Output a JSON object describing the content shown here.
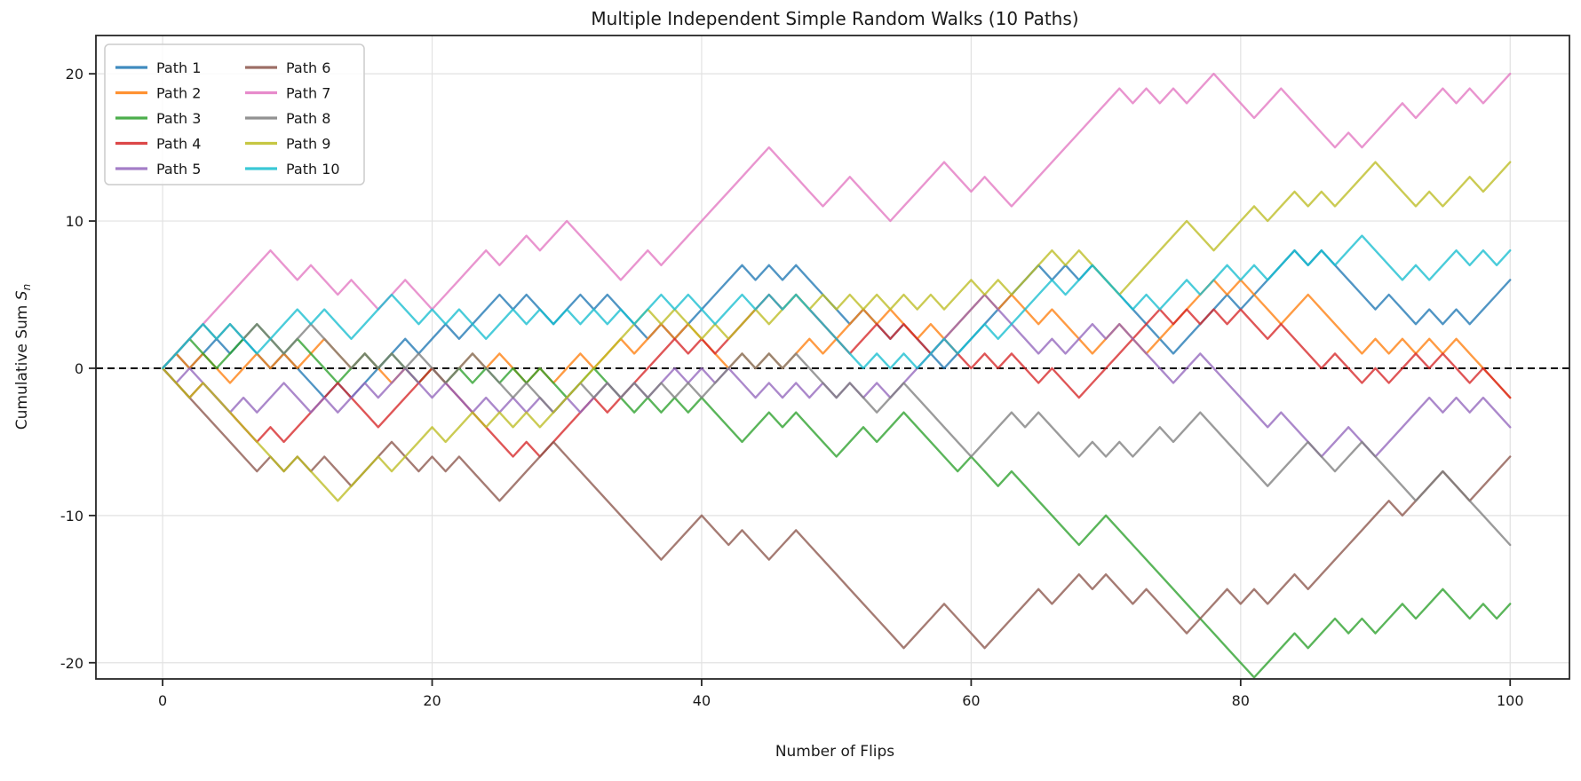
{
  "title": "Multiple Independent Simple Random Walks (10 Paths)",
  "chart_data": {
    "type": "line",
    "title": "Multiple Independent Simple Random Walks (10 Paths)",
    "xlabel": "Number of Flips",
    "ylabel_prefix": "Cumulative Sum ",
    "ylabel_var": "S",
    "ylabel_sub": "n",
    "xlim": [
      -4.95,
      104.4
    ],
    "ylim": [
      -21.1,
      22.6
    ],
    "xticks": [
      0,
      20,
      40,
      60,
      80,
      100
    ],
    "yticks": [
      -20,
      -10,
      0,
      10,
      20
    ],
    "grid": true,
    "grid_color": "#e2e2e2",
    "spine_color": "#262626",
    "legend_position": "upper left",
    "reference_line": {
      "y": 0,
      "style": "dashed",
      "color": "#000000"
    },
    "line_opacity": 0.78,
    "x_start": 0,
    "x_step": 1,
    "n_points": 101,
    "series": [
      {
        "name": "Path 1",
        "color": "#1f77b4",
        "values": [
          0,
          1,
          0,
          1,
          2,
          1,
          2,
          1,
          0,
          1,
          0,
          -1,
          -2,
          -1,
          -2,
          -1,
          0,
          1,
          2,
          1,
          2,
          3,
          2,
          3,
          4,
          5,
          4,
          5,
          4,
          3,
          4,
          5,
          4,
          5,
          4,
          3,
          2,
          3,
          2,
          3,
          4,
          5,
          6,
          7,
          6,
          7,
          6,
          7,
          6,
          5,
          4,
          3,
          4,
          3,
          2,
          3,
          2,
          1,
          0,
          1,
          2,
          3,
          4,
          5,
          6,
          7,
          6,
          7,
          6,
          7,
          6,
          5,
          4,
          3,
          2,
          1,
          2,
          3,
          4,
          5,
          4,
          5,
          6,
          7,
          8,
          7,
          8,
          7,
          6,
          5,
          4,
          5,
          4,
          3,
          4,
          3,
          4,
          3,
          4,
          5,
          6
        ]
      },
      {
        "name": "Path 2",
        "color": "#ff7f0e",
        "values": [
          0,
          1,
          0,
          1,
          0,
          -1,
          0,
          1,
          0,
          1,
          0,
          1,
          2,
          1,
          0,
          1,
          0,
          -1,
          0,
          -1,
          0,
          -1,
          0,
          1,
          0,
          1,
          0,
          -1,
          0,
          -1,
          0,
          1,
          0,
          1,
          2,
          1,
          2,
          3,
          2,
          3,
          2,
          1,
          0,
          1,
          0,
          1,
          0,
          1,
          2,
          1,
          2,
          3,
          4,
          3,
          4,
          3,
          2,
          3,
          2,
          3,
          4,
          5,
          4,
          5,
          4,
          3,
          4,
          3,
          2,
          1,
          2,
          3,
          2,
          1,
          2,
          3,
          4,
          5,
          6,
          5,
          6,
          5,
          4,
          3,
          4,
          5,
          4,
          3,
          2,
          1,
          2,
          1,
          2,
          1,
          2,
          1,
          2,
          1,
          0,
          -1,
          -2
        ]
      },
      {
        "name": "Path 3",
        "color": "#2ca02c",
        "values": [
          0,
          1,
          2,
          1,
          0,
          1,
          2,
          3,
          2,
          1,
          2,
          1,
          0,
          -1,
          0,
          1,
          0,
          1,
          0,
          -1,
          0,
          -1,
          0,
          -1,
          0,
          -1,
          0,
          -1,
          0,
          -1,
          -2,
          -1,
          0,
          -1,
          -2,
          -3,
          -2,
          -3,
          -2,
          -3,
          -2,
          -3,
          -4,
          -5,
          -4,
          -3,
          -4,
          -3,
          -4,
          -5,
          -6,
          -5,
          -4,
          -5,
          -4,
          -3,
          -4,
          -5,
          -6,
          -7,
          -6,
          -7,
          -8,
          -7,
          -8,
          -9,
          -10,
          -11,
          -12,
          -11,
          -10,
          -11,
          -12,
          -13,
          -14,
          -15,
          -16,
          -17,
          -18,
          -19,
          -20,
          -21,
          -20,
          -19,
          -18,
          -19,
          -18,
          -17,
          -18,
          -17,
          -18,
          -17,
          -16,
          -17,
          -16,
          -15,
          -16,
          -17,
          -16,
          -17,
          -16
        ]
      },
      {
        "name": "Path 4",
        "color": "#d62728",
        "values": [
          0,
          -1,
          -2,
          -1,
          -2,
          -3,
          -4,
          -5,
          -4,
          -5,
          -4,
          -3,
          -2,
          -1,
          -2,
          -3,
          -4,
          -3,
          -2,
          -1,
          0,
          -1,
          -2,
          -3,
          -4,
          -5,
          -6,
          -5,
          -6,
          -5,
          -4,
          -3,
          -2,
          -3,
          -2,
          -1,
          0,
          1,
          2,
          1,
          2,
          1,
          2,
          3,
          4,
          5,
          4,
          5,
          4,
          3,
          2,
          1,
          2,
          3,
          2,
          3,
          2,
          1,
          2,
          1,
          0,
          1,
          0,
          1,
          0,
          -1,
          0,
          -1,
          -2,
          -1,
          0,
          1,
          2,
          3,
          4,
          3,
          4,
          3,
          4,
          3,
          4,
          3,
          2,
          3,
          2,
          1,
          0,
          1,
          0,
          -1,
          0,
          -1,
          0,
          1,
          0,
          1,
          0,
          -1,
          0,
          -1,
          -2
        ]
      },
      {
        "name": "Path 5",
        "color": "#9467bd",
        "values": [
          0,
          -1,
          0,
          -1,
          -2,
          -3,
          -2,
          -3,
          -2,
          -1,
          -2,
          -3,
          -2,
          -3,
          -2,
          -1,
          -2,
          -1,
          0,
          -1,
          -2,
          -1,
          -2,
          -3,
          -2,
          -3,
          -2,
          -3,
          -2,
          -3,
          -2,
          -3,
          -2,
          -1,
          -2,
          -1,
          -2,
          -1,
          0,
          -1,
          0,
          -1,
          0,
          -1,
          -2,
          -1,
          -2,
          -1,
          -2,
          -1,
          -2,
          -1,
          -2,
          -1,
          -2,
          -1,
          0,
          1,
          2,
          3,
          4,
          5,
          4,
          3,
          2,
          1,
          2,
          1,
          2,
          3,
          2,
          3,
          2,
          1,
          0,
          -1,
          0,
          1,
          0,
          -1,
          -2,
          -3,
          -4,
          -3,
          -4,
          -5,
          -6,
          -5,
          -4,
          -5,
          -6,
          -5,
          -4,
          -3,
          -2,
          -3,
          -2,
          -3,
          -2,
          -3,
          -4
        ]
      },
      {
        "name": "Path 6",
        "color": "#8c564b",
        "values": [
          0,
          -1,
          -2,
          -3,
          -4,
          -5,
          -6,
          -7,
          -6,
          -7,
          -6,
          -7,
          -6,
          -7,
          -8,
          -7,
          -6,
          -5,
          -6,
          -7,
          -6,
          -7,
          -6,
          -7,
          -8,
          -9,
          -8,
          -7,
          -6,
          -5,
          -6,
          -7,
          -8,
          -9,
          -10,
          -11,
          -12,
          -13,
          -12,
          -11,
          -10,
          -11,
          -12,
          -11,
          -12,
          -13,
          -12,
          -11,
          -12,
          -13,
          -14,
          -15,
          -16,
          -17,
          -18,
          -19,
          -18,
          -17,
          -16,
          -17,
          -18,
          -19,
          -18,
          -17,
          -16,
          -15,
          -16,
          -15,
          -14,
          -15,
          -14,
          -15,
          -16,
          -15,
          -16,
          -17,
          -18,
          -17,
          -16,
          -15,
          -16,
          -15,
          -16,
          -15,
          -14,
          -15,
          -14,
          -13,
          -12,
          -11,
          -10,
          -9,
          -10,
          -9,
          -8,
          -7,
          -8,
          -9,
          -8,
          -7,
          -6
        ]
      },
      {
        "name": "Path 7",
        "color": "#e377c2",
        "values": [
          0,
          1,
          2,
          3,
          4,
          5,
          6,
          7,
          8,
          7,
          6,
          7,
          6,
          5,
          6,
          5,
          4,
          5,
          6,
          5,
          4,
          5,
          6,
          7,
          8,
          7,
          8,
          9,
          8,
          9,
          10,
          9,
          8,
          7,
          6,
          7,
          8,
          7,
          8,
          9,
          10,
          11,
          12,
          13,
          14,
          15,
          14,
          13,
          12,
          11,
          12,
          13,
          12,
          11,
          10,
          11,
          12,
          13,
          14,
          13,
          12,
          13,
          12,
          11,
          12,
          13,
          14,
          15,
          16,
          17,
          18,
          19,
          18,
          19,
          18,
          19,
          18,
          19,
          20,
          19,
          18,
          17,
          18,
          19,
          18,
          17,
          16,
          15,
          16,
          15,
          16,
          17,
          18,
          17,
          18,
          19,
          18,
          19,
          18,
          19,
          20
        ]
      },
      {
        "name": "Path 8",
        "color": "#7f7f7f",
        "values": [
          0,
          1,
          2,
          3,
          2,
          3,
          2,
          3,
          2,
          1,
          2,
          3,
          2,
          1,
          0,
          1,
          0,
          1,
          0,
          1,
          0,
          -1,
          0,
          1,
          0,
          -1,
          -2,
          -1,
          -2,
          -3,
          -2,
          -1,
          -2,
          -1,
          -2,
          -1,
          -2,
          -1,
          -2,
          -1,
          -2,
          -1,
          0,
          1,
          0,
          1,
          0,
          1,
          0,
          -1,
          -2,
          -1,
          -2,
          -3,
          -2,
          -1,
          -2,
          -3,
          -4,
          -5,
          -6,
          -5,
          -4,
          -3,
          -4,
          -3,
          -4,
          -5,
          -6,
          -5,
          -6,
          -5,
          -6,
          -5,
          -4,
          -5,
          -4,
          -3,
          -4,
          -5,
          -6,
          -7,
          -8,
          -7,
          -6,
          -5,
          -6,
          -7,
          -6,
          -5,
          -6,
          -7,
          -8,
          -9,
          -8,
          -7,
          -8,
          -9,
          -10,
          -11,
          -12
        ]
      },
      {
        "name": "Path 9",
        "color": "#bcbd22",
        "values": [
          0,
          -1,
          -2,
          -1,
          -2,
          -3,
          -4,
          -5,
          -6,
          -7,
          -6,
          -7,
          -8,
          -9,
          -8,
          -7,
          -6,
          -7,
          -6,
          -5,
          -4,
          -5,
          -4,
          -3,
          -4,
          -3,
          -4,
          -3,
          -4,
          -3,
          -2,
          -1,
          0,
          1,
          2,
          3,
          4,
          3,
          4,
          3,
          2,
          3,
          2,
          3,
          4,
          3,
          4,
          5,
          4,
          5,
          4,
          5,
          4,
          5,
          4,
          5,
          4,
          5,
          4,
          5,
          6,
          5,
          6,
          5,
          6,
          7,
          8,
          7,
          8,
          7,
          6,
          5,
          6,
          7,
          8,
          9,
          10,
          9,
          8,
          9,
          10,
          11,
          10,
          11,
          12,
          11,
          12,
          11,
          12,
          13,
          14,
          13,
          12,
          11,
          12,
          11,
          12,
          13,
          12,
          13,
          14
        ]
      },
      {
        "name": "Path 10",
        "color": "#17becf",
        "values": [
          0,
          1,
          2,
          3,
          2,
          3,
          2,
          1,
          2,
          3,
          4,
          3,
          4,
          3,
          2,
          3,
          4,
          5,
          4,
          3,
          4,
          3,
          4,
          3,
          2,
          3,
          4,
          3,
          4,
          3,
          4,
          3,
          4,
          3,
          4,
          3,
          4,
          5,
          4,
          5,
          4,
          3,
          4,
          5,
          4,
          5,
          4,
          5,
          4,
          3,
          2,
          1,
          0,
          1,
          0,
          1,
          0,
          1,
          2,
          1,
          2,
          3,
          2,
          3,
          4,
          5,
          6,
          5,
          6,
          7,
          6,
          5,
          4,
          5,
          4,
          5,
          6,
          5,
          6,
          7,
          6,
          7,
          6,
          7,
          8,
          7,
          8,
          7,
          8,
          9,
          8,
          7,
          6,
          7,
          6,
          7,
          8,
          7,
          8,
          7,
          8
        ]
      }
    ]
  },
  "legend": {
    "labels": [
      "Path 1",
      "Path 2",
      "Path 3",
      "Path 4",
      "Path 5",
      "Path 6",
      "Path 7",
      "Path 8",
      "Path 9",
      "Path 10"
    ]
  }
}
